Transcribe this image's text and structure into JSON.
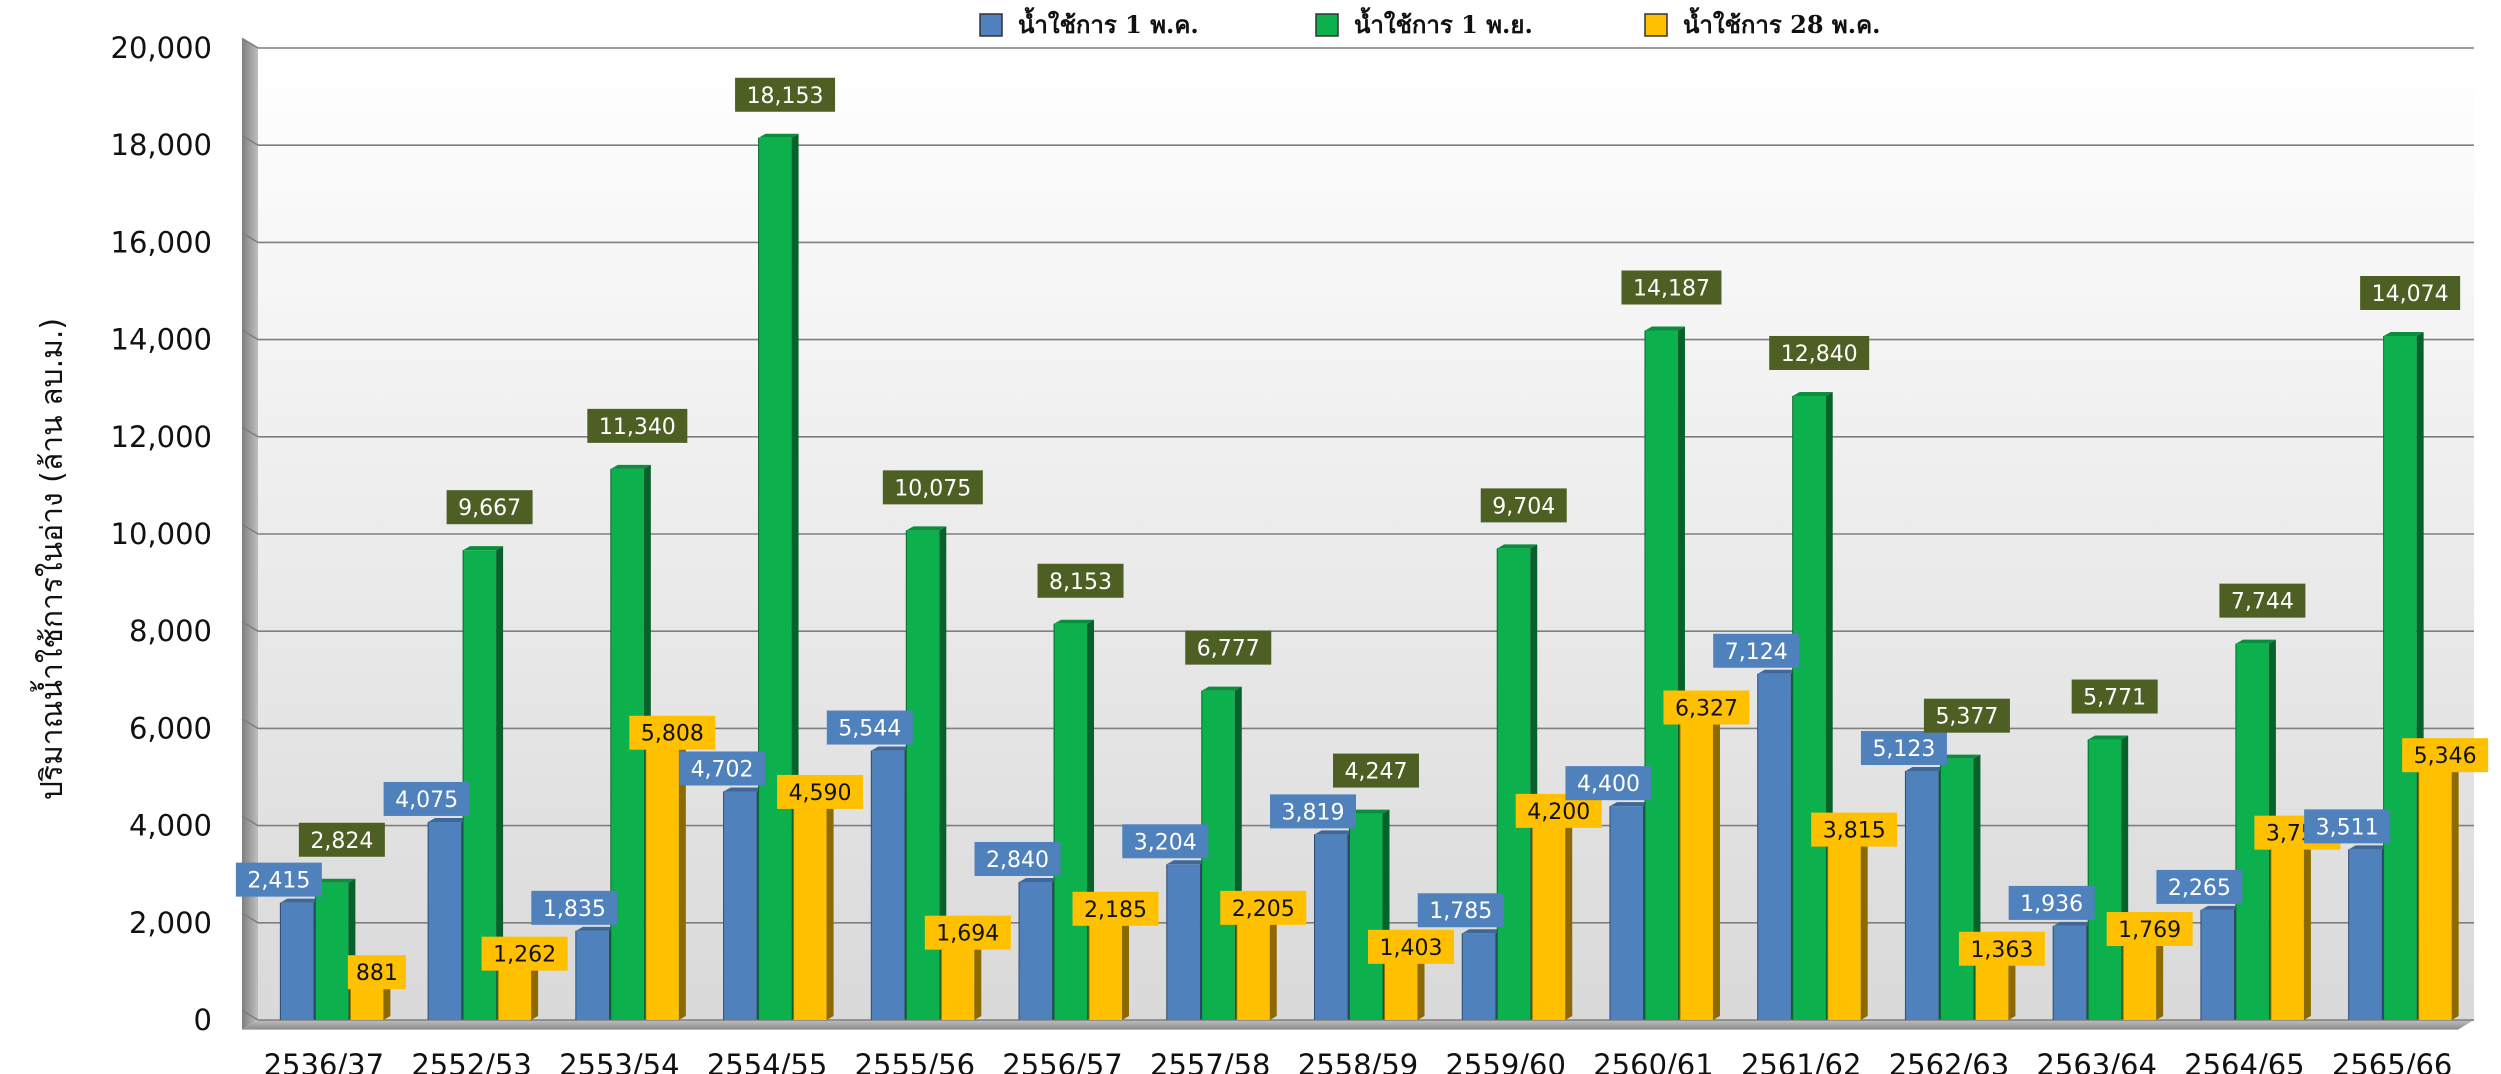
{
  "chart_data": {
    "type": "bar",
    "title": "",
    "xlabel": "",
    "ylabel": "ปริมาณน้ำใช้การในอ่าง (ล้าน ลบ.ม.)",
    "ylim": [
      0,
      20000
    ],
    "yticks": [
      0,
      2000,
      4000,
      6000,
      8000,
      10000,
      12000,
      14000,
      16000,
      18000,
      20000
    ],
    "ytick_labels": [
      "0",
      "2,000",
      "4,000",
      "6,000",
      "8,000",
      "10,000",
      "12,000",
      "14,000",
      "16,000",
      "18,000",
      "20,000"
    ],
    "grid": true,
    "legend_position": "top-center",
    "categories": [
      "2536/37",
      "2552/53",
      "2553/54",
      "2554/55",
      "2555/56",
      "2556/57",
      "2557/58",
      "2558/59",
      "2559/60",
      "2560/61",
      "2561/62",
      "2562/63",
      "2563/64",
      "2564/65",
      "2565/66"
    ],
    "series": [
      {
        "name": "น้ำใช้การ 1  พ.ค.",
        "color": "#4f81bd",
        "label_color": "#4f81bd",
        "label_text_color": "#ffffff",
        "values": [
          2415,
          4075,
          1835,
          4702,
          5544,
          2840,
          3204,
          3819,
          1785,
          4400,
          7124,
          5123,
          1936,
          2265,
          3511
        ],
        "labels": [
          "2,415",
          "4,075",
          "1,835",
          "4,702",
          "5,544",
          "2,840",
          "3,204",
          "3,819",
          "1,785",
          "4,400",
          "7,124",
          "5,123",
          "1,936",
          "2,265",
          "3,511"
        ]
      },
      {
        "name": "น้ำใช้การ 1 พ.ย.",
        "color": "#0cb04c",
        "label_color": "#4e5f23",
        "label_text_color": "#ffffff",
        "values": [
          2824,
          9667,
          11340,
          18153,
          10075,
          8153,
          6777,
          4247,
          9704,
          14187,
          12840,
          5377,
          5771,
          7744,
          14074
        ],
        "labels": [
          "2,824",
          "9,667",
          "11,340",
          "18,153",
          "10,075",
          "8,153",
          "6,777",
          "4,247",
          "9,704",
          "14,187",
          "12,840",
          "5,377",
          "5,771",
          "7,744",
          "14,074"
        ]
      },
      {
        "name": "น้ำใช้การ 28 พ.ค.",
        "color": "#ffc000",
        "label_color": "#ffc000",
        "label_text_color": "#111111",
        "values": [
          881,
          1262,
          5808,
          4590,
          1694,
          2185,
          2205,
          1403,
          4200,
          6327,
          3815,
          1363,
          1769,
          3752,
          5346
        ],
        "labels": [
          "881",
          "1,262",
          "5,808",
          "4,590",
          "1,694",
          "2,185",
          "2,205",
          "1,403",
          "4,200",
          "6,327",
          "3,815",
          "1,363",
          "1,769",
          "3,752",
          "5,346"
        ]
      }
    ]
  }
}
